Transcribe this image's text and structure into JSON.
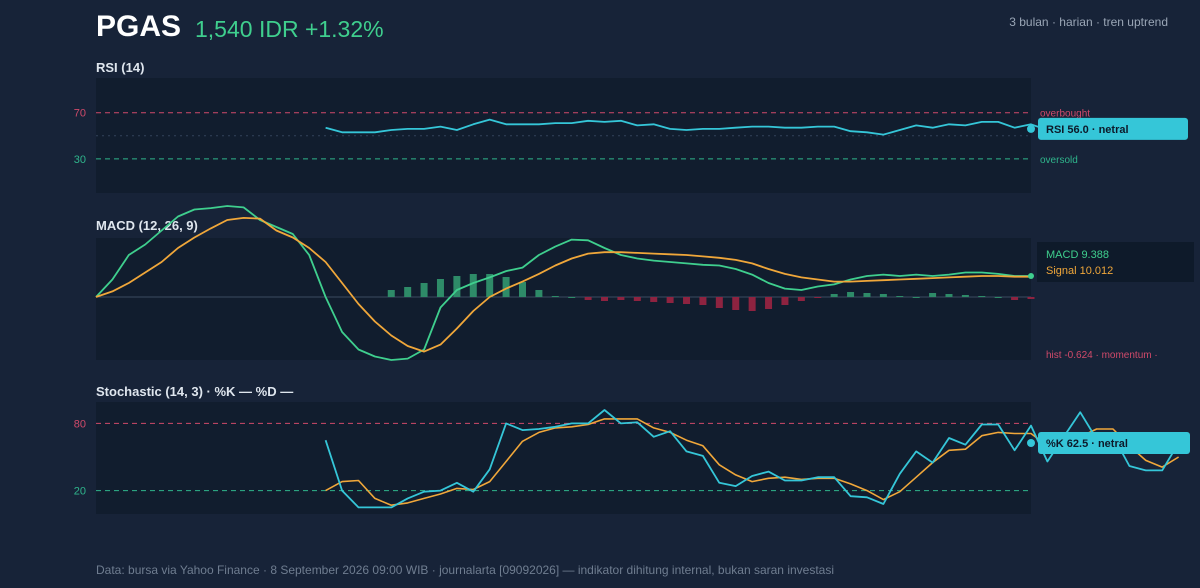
{
  "header": {
    "ticker": "PGAS",
    "price_line": "1,540 IDR +1.32%",
    "subtitle": "3 bulan · harian · tren uptrend"
  },
  "colors": {
    "background": "#172338",
    "panel": "#111d2e",
    "rsi": "#35c6d8",
    "macd": "#3fcf8e",
    "signal": "#f0a73a",
    "hist_pos": "#2e8b68",
    "hist_neg": "#8e2340",
    "overbought": "#d04a6a",
    "oversold": "#2fb58c",
    "stoch_k": "#35c6d8",
    "stoch_d": "#f0a73a"
  },
  "chart_data": [
    {
      "type": "line",
      "title": "RSI (14)",
      "ylim": [
        10,
        90
      ],
      "reference_lines": [
        {
          "value": 70,
          "tick": "70",
          "label": "overbought"
        },
        {
          "value": 30,
          "tick": "30",
          "label": "oversold"
        }
      ],
      "series": [
        {
          "name": "RSI",
          "start_index": 14,
          "values": [
            57,
            53,
            53,
            53,
            55,
            56,
            56,
            58,
            55,
            60,
            64,
            60,
            60,
            60,
            61,
            61,
            63,
            62,
            63,
            59,
            60,
            56,
            55,
            56,
            56,
            57,
            58,
            58,
            57,
            57,
            58,
            58,
            54,
            53,
            51,
            55,
            59,
            57,
            60,
            59,
            62,
            62,
            57,
            60,
            55,
            58,
            62,
            58,
            59,
            55,
            55,
            56
          ]
        }
      ],
      "callout": "RSI 56.0 · netral"
    },
    {
      "type": "line",
      "title": "MACD (12, 26, 9)",
      "ylim": [
        -90,
        130
      ],
      "series": [
        {
          "name": "MACD",
          "values": [
            0,
            25,
            60,
            75,
            95,
            115,
            125,
            127,
            130,
            128,
            110,
            100,
            90,
            60,
            0,
            -50,
            -75,
            -85,
            -90,
            -88,
            -75,
            -15,
            10,
            20,
            28,
            37,
            42,
            60,
            72,
            82,
            81,
            70,
            60,
            55,
            52,
            50,
            48,
            46,
            45,
            40,
            32,
            20,
            12,
            10,
            15,
            18,
            25,
            30,
            32,
            30,
            32,
            30,
            32,
            35,
            35,
            33,
            30,
            30
          ]
        },
        {
          "name": "Signal",
          "values": [
            0,
            8,
            20,
            35,
            50,
            70,
            85,
            98,
            110,
            113,
            112,
            95,
            85,
            70,
            50,
            20,
            -10,
            -35,
            -55,
            -70,
            -78,
            -68,
            -45,
            -20,
            0,
            12,
            22,
            33,
            45,
            55,
            62,
            64,
            64,
            63,
            62,
            61,
            60,
            58,
            56,
            53,
            48,
            40,
            33,
            28,
            25,
            22,
            22,
            23,
            24,
            25,
            26,
            27,
            28,
            29,
            30,
            30,
            29,
            29
          ]
        },
        {
          "name": "hist",
          "values": [
            9.72,
            13.89,
            19.44,
            25,
            29.17,
            31.94,
            31.94,
            27.78,
            20.83,
            9.72,
            1.39,
            0,
            -4.17,
            -5.56,
            -4.17,
            -5.56,
            -6.94,
            -8.33,
            -9.72,
            -11.11,
            -15.28,
            -18.06,
            -19.44,
            -16.67,
            -11.11,
            -5.56,
            -1.39,
            4.17,
            6.94,
            5.56,
            4.17,
            1.39,
            0,
            5.56,
            4.17,
            2.78,
            1.39,
            0,
            -4.17,
            -2.78
          ],
          "start_index": 18
        }
      ],
      "legend": {
        "macd": "MACD 9.388",
        "signal": "Signal 10.012",
        "hist": "hist -0.624 · momentum ·"
      }
    },
    {
      "type": "line",
      "title": "Stochastic (14, 3) · %K — %D —",
      "ylim": [
        0,
        100
      ],
      "reference_lines": [
        {
          "value": 80,
          "tick": "80"
        },
        {
          "value": 20,
          "tick": "20"
        }
      ],
      "series": [
        {
          "name": "%K",
          "start_index": 14,
          "values": [
            65,
            20,
            5,
            5,
            5,
            13,
            19,
            20,
            27,
            19,
            39,
            80,
            74,
            75,
            77,
            80,
            80,
            92,
            80,
            81,
            68,
            73,
            55,
            51,
            27,
            24,
            33,
            37,
            29,
            29,
            32,
            32,
            15,
            14,
            8,
            35,
            55,
            45,
            67,
            61,
            79,
            79,
            56,
            78,
            46,
            68,
            90,
            66,
            69,
            42,
            38,
            38,
            62.5
          ]
        },
        {
          "name": "%D",
          "start_index": 14,
          "values": [
            20,
            28,
            29,
            13,
            7,
            9,
            13,
            17,
            22,
            21,
            28,
            46,
            64,
            72,
            76,
            77,
            79,
            84,
            84,
            84,
            76,
            72,
            65,
            60,
            43,
            34,
            28,
            31,
            32,
            30,
            31,
            31,
            26,
            20,
            12,
            19,
            32,
            45,
            56,
            57,
            69,
            72,
            71,
            71,
            60,
            64,
            68,
            75,
            75,
            60,
            47,
            41,
            50
          ]
        }
      ],
      "callout": "%K 62.5 · netral"
    }
  ],
  "footer": "Data: bursa via Yahoo Finance · 8 September 2026 09:00 WIB · journalarta [09092026] — indikator dihitung internal, bukan saran investasi"
}
